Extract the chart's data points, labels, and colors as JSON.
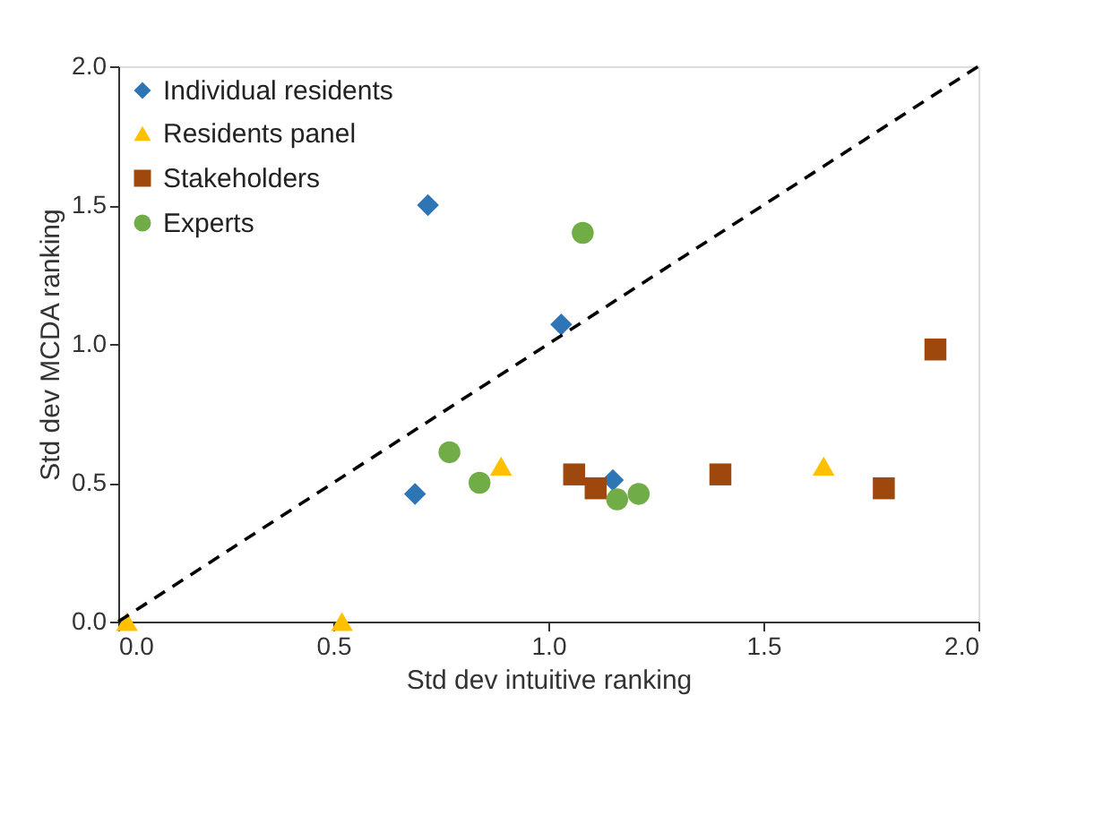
{
  "chart_data": {
    "type": "scatter",
    "xlabel": "Std dev intuitive ranking",
    "ylabel": "Std dev MCDA ranking",
    "xlim": [
      0,
      2
    ],
    "ylim": [
      0,
      2
    ],
    "xticks": [
      {
        "value": 0,
        "label": "0.0"
      },
      {
        "value": 0.5,
        "label": "0.5"
      },
      {
        "value": 1,
        "label": "1.0"
      },
      {
        "value": 1.5,
        "label": "1.5"
      },
      {
        "value": 2,
        "label": "2.0"
      }
    ],
    "yticks": [
      {
        "value": 0,
        "label": "0.0"
      },
      {
        "value": 0.5,
        "label": "0.5"
      },
      {
        "value": 1,
        "label": "1.0"
      },
      {
        "value": 1.5,
        "label": "1.5"
      },
      {
        "value": 2,
        "label": "2.0"
      }
    ],
    "grid": false,
    "legend": "top left",
    "series": [
      {
        "name": "Individual residents",
        "color": "#2e75b6",
        "marker": "diamond",
        "x": [
          0.72,
          0.69,
          1.03,
          1.15
        ],
        "values": [
          1.5,
          0.46,
          1.07,
          0.51
        ]
      },
      {
        "name": "Residents panel",
        "color": "#ffc000",
        "marker": "triangle",
        "x": [
          0.02,
          0.52,
          0.89,
          1.64
        ],
        "values": [
          0,
          0,
          0.56,
          0.56
        ]
      },
      {
        "name": "Stakeholders",
        "color": "#9e480e",
        "marker": "square",
        "x": [
          1.06,
          1.11,
          1.4,
          1.78,
          1.9
        ],
        "values": [
          0.53,
          0.48,
          0.53,
          0.48,
          0.98
        ]
      },
      {
        "name": "Experts",
        "color": "#70ad47",
        "marker": "circle",
        "x": [
          0.77,
          0.84,
          1.08,
          1.16,
          1.21
        ],
        "values": [
          0.61,
          0.5,
          1.4,
          0.44,
          0.46
        ]
      },
      {
        "type": "line",
        "color": "#000000",
        "line_style": "dashed",
        "marker": "none",
        "x": [
          0,
          2
        ],
        "values": [
          0,
          2
        ]
      }
    ]
  }
}
